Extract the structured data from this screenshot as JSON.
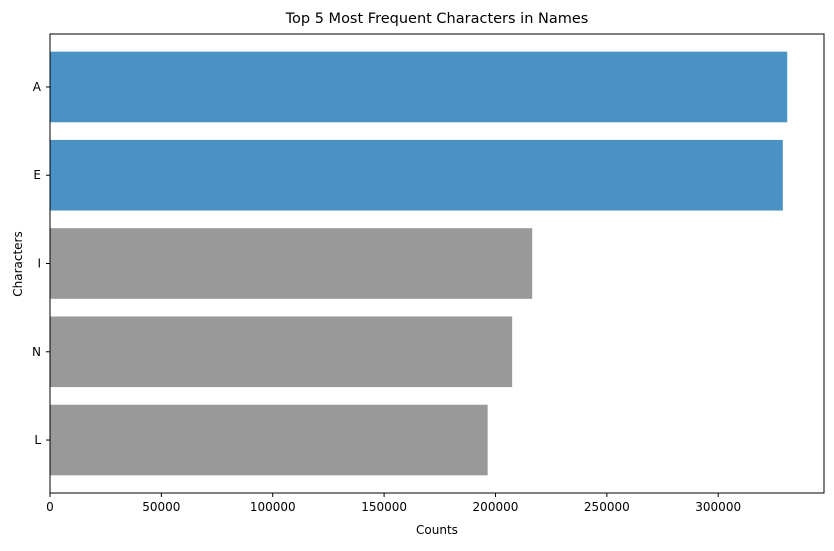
{
  "chart_data": {
    "type": "bar",
    "orientation": "horizontal",
    "title": "Top 5 Most Frequent Characters in Names",
    "xlabel": "Counts",
    "ylabel": "Characters",
    "categories": [
      "A",
      "E",
      "I",
      "N",
      "L"
    ],
    "values": [
      331000,
      329000,
      216500,
      207500,
      196500
    ],
    "bar_colors": [
      "#4a92c3",
      "#4a92c3",
      "#999999",
      "#999999",
      "#999999"
    ],
    "x_ticks": [
      {
        "value": 0,
        "label": "0"
      },
      {
        "value": 50000,
        "label": "50000"
      },
      {
        "value": 100000,
        "label": "100000"
      },
      {
        "value": 150000,
        "label": "150000"
      },
      {
        "value": 200000,
        "label": "200000"
      },
      {
        "value": 250000,
        "label": "250000"
      },
      {
        "value": 300000,
        "label": "300000"
      }
    ],
    "xlim": [
      0,
      347500
    ],
    "grid": false,
    "legend": "none"
  }
}
